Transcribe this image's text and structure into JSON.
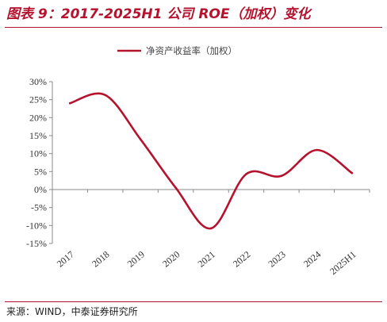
{
  "header": {
    "title": "图表 9：2017-2025H1 公司 ROE（加权）变化"
  },
  "footer": {
    "source": "来源：WIND，中泰证券研究所"
  },
  "colors": {
    "accent": "#b5122e",
    "line": "#b5122e",
    "axis": "#8a8a8a"
  },
  "chart_data": {
    "type": "line",
    "categories": [
      "2017",
      "2018",
      "2019",
      "2020",
      "2021",
      "2022",
      "2023",
      "2024",
      "2025H1"
    ],
    "series": [
      {
        "name": "净资产收益率（加权）",
        "values": [
          24,
          26.3,
          14,
          0.5,
          -10.8,
          4.3,
          3.8,
          11,
          4.6
        ]
      }
    ],
    "y_ticks": [
      30,
      25,
      20,
      15,
      10,
      5,
      0,
      -5,
      -10,
      -15
    ],
    "y_tick_labels": [
      "30%",
      "25%",
      "20%",
      "15%",
      "10%",
      "5%",
      "0%",
      "-5%",
      "-10%",
      "-15%"
    ],
    "ylim": [
      -15,
      30
    ],
    "grid": false,
    "legend_position": "top",
    "smooth": true
  }
}
